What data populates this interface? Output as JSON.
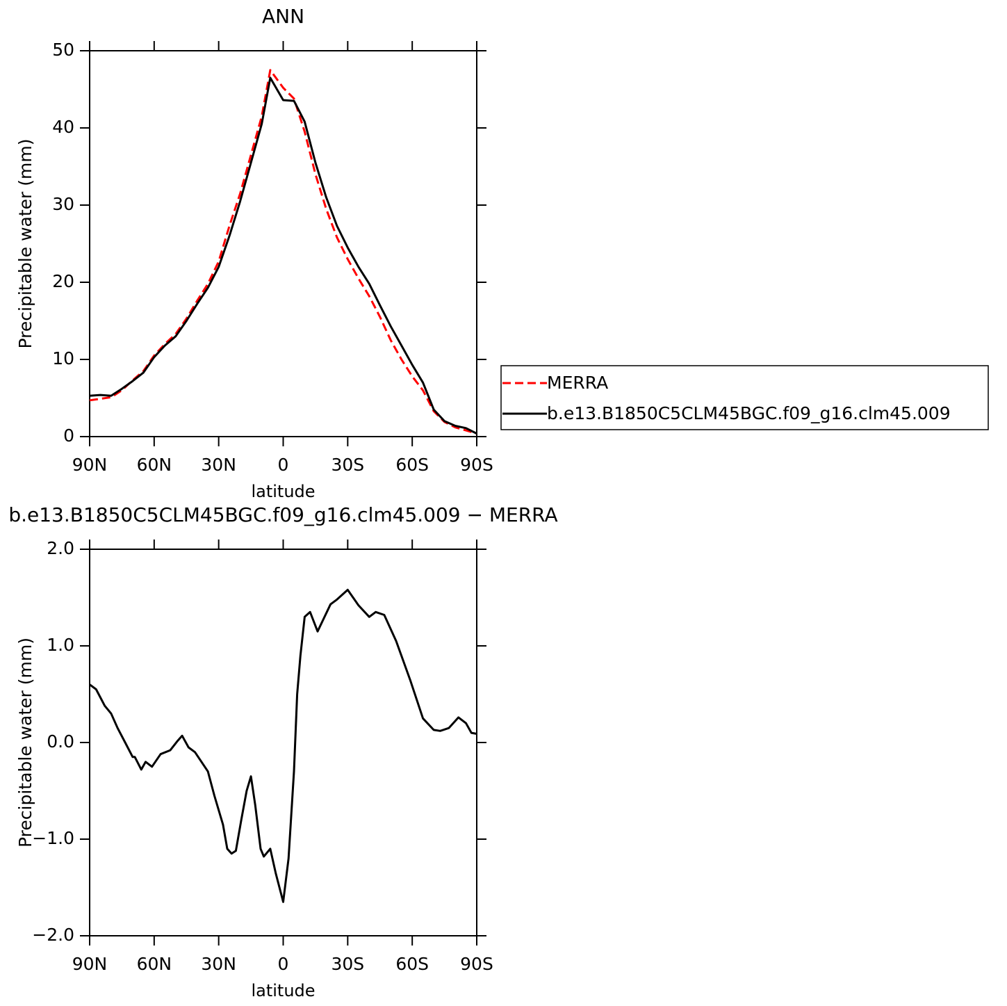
{
  "chart_data": [
    {
      "type": "line",
      "title": "ANN",
      "xlabel": "latitude",
      "ylabel": "Precipitable water (mm)",
      "x": [
        90,
        85,
        80,
        75,
        70,
        65,
        60,
        55,
        50,
        45,
        40,
        35,
        30,
        25,
        20,
        15,
        10,
        6,
        0,
        -5,
        -10,
        -15,
        -20,
        -25,
        -30,
        -35,
        -40,
        -45,
        -50,
        -55,
        -60,
        -65,
        -70,
        -75,
        -80,
        -85,
        -90
      ],
      "series": [
        {
          "name": "MERRA",
          "color": "#ff0000",
          "dash": true,
          "values": [
            4.7,
            4.9,
            5.1,
            6.0,
            7.3,
            8.5,
            10.5,
            12.0,
            13.3,
            15.3,
            17.6,
            19.8,
            22.7,
            27.3,
            31.5,
            36.5,
            41.5,
            47.5,
            45.2,
            43.8,
            39.5,
            34.0,
            29.5,
            25.8,
            23.0,
            20.5,
            18.2,
            15.5,
            12.5,
            10.0,
            7.8,
            6.0,
            3.3,
            1.9,
            1.2,
            0.8,
            0.4
          ]
        },
        {
          "name": "b.e13.B1850C5CLM45BGC.f09_g16.clm45.009",
          "color": "#000000",
          "dash": false,
          "values": [
            5.3,
            5.4,
            5.3,
            6.2,
            7.2,
            8.3,
            10.3,
            11.8,
            13.0,
            15.0,
            17.2,
            19.3,
            22.0,
            26.0,
            30.5,
            35.5,
            40.5,
            46.5,
            43.6,
            43.5,
            40.8,
            35.5,
            31.0,
            27.3,
            24.5,
            22.0,
            19.8,
            17.0,
            14.3,
            11.8,
            9.3,
            7.0,
            3.5,
            2.0,
            1.4,
            1.1,
            0.4
          ]
        }
      ],
      "xlim": [
        90,
        -90
      ],
      "ylim": [
        0,
        50
      ],
      "xticks": [
        {
          "value": 90,
          "label": "90N"
        },
        {
          "value": 60,
          "label": "60N"
        },
        {
          "value": 30,
          "label": "30N"
        },
        0,
        {
          "value": -30,
          "label": "30S"
        },
        {
          "value": -60,
          "label": "60S"
        },
        {
          "value": -90,
          "label": "90S"
        }
      ],
      "yticks": [
        0,
        10,
        20,
        30,
        40,
        50
      ],
      "legend": "right"
    },
    {
      "type": "line",
      "title": "b.e13.B1850C5CLM45BGC.f09_g16.clm45.009 − MERRA",
      "xlabel": "latitude",
      "ylabel": "Precipitable water (mm)",
      "x": [
        90,
        87,
        83,
        80,
        77,
        73.5,
        70,
        69,
        66,
        64,
        61,
        57,
        52.5,
        49,
        47,
        44,
        41,
        38,
        35,
        32,
        28,
        26,
        24,
        22,
        19.5,
        17,
        15,
        13,
        10.5,
        9,
        6,
        3.5,
        0,
        -2.5,
        -5,
        -6.5,
        -8,
        -10,
        -12.5,
        -16,
        -22,
        -25,
        -30,
        -35,
        -40,
        -43,
        -47,
        -52.5,
        -59,
        -65,
        -70,
        -73,
        -77,
        -81.5,
        -85,
        -87.5,
        -90
      ],
      "series": [
        {
          "color": "#000000",
          "dash": false,
          "values": [
            0.6,
            0.55,
            0.38,
            0.3,
            0.15,
            0.0,
            -0.15,
            -0.15,
            -0.28,
            -0.2,
            -0.25,
            -0.12,
            -0.08,
            0.02,
            0.07,
            -0.05,
            -0.1,
            -0.2,
            -0.3,
            -0.55,
            -0.85,
            -1.1,
            -1.15,
            -1.12,
            -0.8,
            -0.5,
            -0.35,
            -0.65,
            -1.1,
            -1.18,
            -1.1,
            -1.35,
            -1.65,
            -1.2,
            -0.3,
            0.5,
            0.9,
            1.3,
            1.35,
            1.15,
            1.43,
            1.48,
            1.58,
            1.42,
            1.3,
            1.35,
            1.32,
            1.05,
            0.65,
            0.25,
            0.13,
            0.12,
            0.15,
            0.26,
            0.2,
            0.1,
            0.09
          ]
        }
      ],
      "xlim": [
        90,
        -90
      ],
      "ylim": [
        -2,
        2
      ],
      "xticks": [
        {
          "value": 90,
          "label": "90N"
        },
        {
          "value": 60,
          "label": "60N"
        },
        {
          "value": 30,
          "label": "30N"
        },
        0,
        {
          "value": -30,
          "label": "30S"
        },
        {
          "value": -60,
          "label": "60S"
        },
        {
          "value": -90,
          "label": "90S"
        }
      ],
      "yticks": [
        {
          "value": -2,
          "label": "−2.0"
        },
        {
          "value": -1,
          "label": "−1.0"
        },
        {
          "value": 0,
          "label": "0.0"
        },
        {
          "value": 1,
          "label": "1.0"
        },
        {
          "value": 2,
          "label": "2.0"
        }
      ]
    }
  ]
}
